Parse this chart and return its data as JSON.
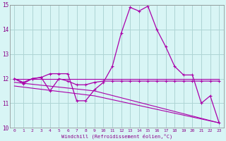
{
  "xlabel": "Windchill (Refroidissement éolien,°C)",
  "background_color": "#d8f5f5",
  "grid_color": "#aed4d4",
  "line_color": "#aa00aa",
  "spine_color": "#888888",
  "xlim": [
    -0.5,
    23.5
  ],
  "ylim": [
    10.0,
    15.0
  ],
  "yticks": [
    10,
    11,
    12,
    13,
    14,
    15
  ],
  "xticks": [
    0,
    1,
    2,
    3,
    4,
    5,
    6,
    7,
    8,
    9,
    10,
    11,
    12,
    13,
    14,
    15,
    16,
    17,
    18,
    19,
    20,
    21,
    22,
    23
  ],
  "series1_x": [
    0,
    1,
    2,
    3,
    4,
    5,
    6,
    7,
    8,
    9,
    10,
    11,
    12,
    13,
    14,
    15,
    16,
    17,
    18,
    19,
    20,
    21,
    22,
    23
  ],
  "series1_y": [
    12.0,
    11.85,
    12.0,
    12.05,
    12.2,
    12.2,
    12.2,
    11.1,
    11.1,
    11.55,
    11.85,
    12.5,
    13.85,
    14.9,
    14.75,
    14.95,
    14.0,
    13.3,
    12.5,
    12.15,
    12.15,
    11.0,
    11.3,
    10.2
  ],
  "series2_x": [
    0,
    1,
    2,
    3,
    4,
    5,
    6,
    7,
    8,
    9,
    10,
    11,
    12,
    13,
    14,
    15,
    16,
    17,
    18,
    19,
    20,
    21,
    22,
    23
  ],
  "series2_y": [
    12.0,
    11.8,
    12.0,
    12.05,
    11.5,
    12.0,
    11.9,
    11.75,
    11.75,
    11.85,
    11.9,
    11.9,
    11.9,
    11.9,
    11.9,
    11.9,
    11.9,
    11.9,
    11.9,
    11.9,
    11.9,
    11.9,
    11.9,
    11.9
  ],
  "series3_x": [
    0,
    23
  ],
  "series3_y": [
    12.0,
    12.0
  ],
  "series4_x": [
    0,
    9,
    23
  ],
  "series4_y": [
    11.85,
    11.5,
    10.2
  ],
  "series5_x": [
    0,
    9,
    23
  ],
  "series5_y": [
    11.7,
    11.3,
    10.2
  ]
}
